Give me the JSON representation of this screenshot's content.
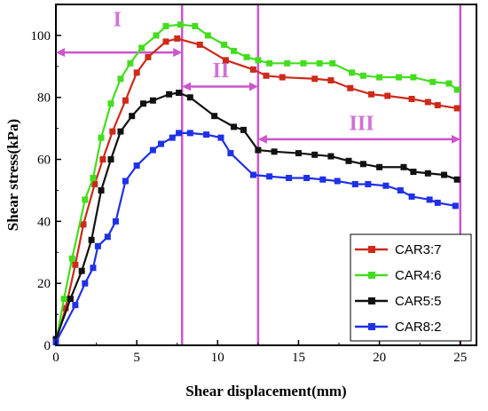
{
  "chart_data": {
    "type": "line",
    "xlabel": "Shear displacement(mm)",
    "ylabel": "Shear stress(kPa)",
    "xlim": [
      0,
      26
    ],
    "ylim": [
      0,
      110
    ],
    "x_ticks": [
      0,
      5,
      10,
      15,
      20,
      25
    ],
    "y_ticks": [
      0,
      20,
      40,
      60,
      80,
      100
    ],
    "grid": false,
    "legend_position": "bottom-right",
    "stage_boundaries": [
      7.8,
      12.5,
      25.0
    ],
    "stages": [
      {
        "label": "I",
        "from": 0,
        "to": 7.8,
        "arrow_y": 94.5,
        "text_x": 3.8,
        "text_y": 103
      },
      {
        "label": "II",
        "from": 7.8,
        "to": 12.5,
        "arrow_y": 83.5,
        "text_x": 10.2,
        "text_y": 86.5
      },
      {
        "label": "III",
        "from": 12.5,
        "to": 25.0,
        "arrow_y": 66.5,
        "text_x": 18.9,
        "text_y": 69.5
      }
    ],
    "stage_color": "#cc55cc",
    "series": [
      {
        "name": "CAR3:7",
        "color": "#cc2a1a",
        "x": [
          0,
          0.6,
          1.2,
          1.7,
          2.4,
          2.9,
          3.5,
          4.3,
          5.0,
          5.7,
          6.8,
          7.5,
          8.9,
          10.5,
          12.2,
          13.0,
          14.0,
          16.0,
          17.0,
          18.2,
          19.5,
          20.5,
          22.0,
          23.0,
          23.6,
          24.8
        ],
        "y": [
          1,
          12,
          26,
          39,
          52,
          60,
          69,
          79,
          88,
          93,
          98,
          99,
          97,
          92,
          89,
          87,
          86.5,
          86,
          85.5,
          83,
          81,
          80.5,
          79.5,
          78.5,
          77.5,
          76.5
        ]
      },
      {
        "name": "CAR4:6",
        "color": "#44dd1e",
        "x": [
          0,
          0.5,
          1.0,
          1.8,
          2.3,
          2.8,
          3.4,
          4.0,
          4.6,
          5.3,
          6.2,
          6.8,
          7.7,
          8.6,
          9.4,
          10.4,
          11.0,
          11.8,
          12.5,
          13.2,
          14.3,
          15.3,
          16.3,
          17.1,
          18.3,
          19.0,
          20.0,
          21.2,
          22.1,
          23.3,
          24.3,
          24.8
        ],
        "y": [
          1,
          15,
          28,
          47,
          54,
          67,
          78,
          86,
          91,
          96,
          100,
          103,
          103.5,
          103,
          100,
          97,
          95,
          93,
          92,
          91,
          91,
          91,
          91,
          91,
          88,
          87,
          86.5,
          86.5,
          86.5,
          85,
          84.5,
          82.5
        ]
      },
      {
        "name": "CAR5:5",
        "color": "#111111",
        "x": [
          0,
          0.9,
          1.6,
          2.2,
          2.8,
          3.4,
          4.0,
          4.7,
          5.4,
          6.0,
          7.0,
          7.6,
          8.3,
          9.8,
          11.0,
          11.6,
          12.5,
          13.5,
          15.0,
          16.0,
          17.0,
          18.1,
          19.0,
          20.0,
          21.5,
          22.1,
          23.0,
          24.0,
          24.8
        ],
        "y": [
          2,
          15,
          24,
          34,
          50,
          60,
          69,
          74,
          78,
          79,
          81,
          81.5,
          80,
          74,
          70.5,
          69.5,
          63,
          62.5,
          62,
          61.5,
          61,
          59.5,
          58.5,
          57.5,
          57.5,
          56,
          55.5,
          55,
          53.5
        ]
      },
      {
        "name": "CAR8:2",
        "color": "#1f31e6",
        "x": [
          0,
          1.2,
          1.8,
          2.3,
          2.6,
          3.2,
          3.7,
          4.3,
          5.0,
          6.0,
          6.5,
          7.2,
          7.6,
          8.3,
          9.3,
          10.2,
          10.8,
          12.2,
          13.2,
          14.4,
          15.5,
          16.5,
          17.4,
          18.5,
          19.3,
          20.4,
          21.3,
          22.0,
          23.1,
          23.6,
          24.7
        ],
        "y": [
          1,
          13,
          20,
          25,
          32,
          35,
          40,
          53,
          58,
          63,
          65,
          67,
          68.5,
          68.5,
          68,
          67,
          62,
          55,
          54.5,
          54,
          54,
          53.5,
          53,
          52,
          52,
          51.5,
          50,
          48,
          47,
          46,
          45
        ]
      }
    ]
  }
}
